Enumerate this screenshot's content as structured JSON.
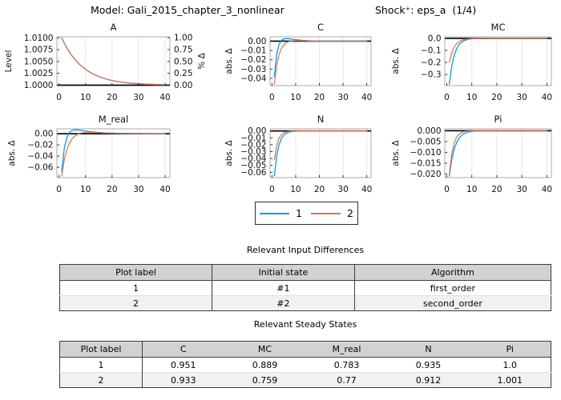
{
  "header": {
    "model_title": "Model: Gali_2015_chapter_3_nonlinear",
    "shock_title": "Shock⁺: eps_a  (1/4)"
  },
  "colors": {
    "series1": "#009AFA",
    "series2": "#E36F47",
    "steady_state_line": "#000000",
    "frame": "#ABABAB",
    "grid": "#E3E3E3",
    "table_header_bg": "#D2D2D2",
    "table_row2_bg": "#F1F1F1"
  },
  "legend": {
    "items": [
      {
        "label": "1",
        "color": "#009AFA"
      },
      {
        "label": "2",
        "color": "#E36F47"
      }
    ]
  },
  "chart_data": [
    {
      "type": "line",
      "title": "A",
      "ylabel": "Level",
      "x_range": [
        1,
        40
      ],
      "xticks": [
        0,
        10,
        20,
        30,
        40
      ],
      "xlim": [
        -0.8,
        41.8
      ],
      "ylim": [
        0.9999,
        1.01022
      ],
      "ytick_labels": [
        "1.0000",
        "1.0025",
        "1.0050",
        "1.0075",
        "1.0100"
      ],
      "steady_state_line": 1.0,
      "grid": "vertical",
      "legend_position": "none",
      "right_axis": {
        "label": "% Δ",
        "tick_labels": [
          "0.00",
          "0.25",
          "0.50",
          "0.75",
          "1.00"
        ],
        "lim": [
          -0.0097,
          1.0195
        ]
      },
      "series": [
        {
          "name": "1",
          "values": [
            1.01,
            1.00885,
            1.00783,
            1.00693,
            1.00613,
            1.00543,
            1.0048,
            1.00425,
            1.00376,
            1.00333,
            1.00295,
            1.00261,
            1.00231,
            1.00204,
            1.00181,
            1.0016,
            1.00142,
            1.00125,
            1.00111,
            1.00098,
            1.00087,
            1.00077,
            1.00068,
            1.0006,
            1.00053,
            1.00047,
            1.00042,
            1.00037,
            1.00033,
            1.00029,
            1.00026,
            1.00023,
            1.0002,
            1.00018,
            1.00016,
            1.00014,
            1.00012,
            1.00011,
            1.0001,
            1.00009
          ]
        },
        {
          "name": "2",
          "values": [
            1.01,
            1.00885,
            1.00783,
            1.00693,
            1.00613,
            1.00543,
            1.0048,
            1.00425,
            1.00376,
            1.00333,
            1.00295,
            1.00261,
            1.00231,
            1.00204,
            1.00181,
            1.0016,
            1.00142,
            1.00125,
            1.00111,
            1.00098,
            1.00087,
            1.00077,
            1.00068,
            1.0006,
            1.00053,
            1.00047,
            1.00042,
            1.00037,
            1.00033,
            1.00029,
            1.00026,
            1.00023,
            1.0002,
            1.00018,
            1.00016,
            1.00014,
            1.00012,
            1.00011,
            1.0001,
            1.00009
          ]
        }
      ]
    },
    {
      "type": "line",
      "title": "C",
      "ylabel": "abs. Δ",
      "x_range": [
        1,
        40
      ],
      "xticks": [
        0,
        10,
        20,
        30,
        40
      ],
      "xlim": [
        -0.8,
        41.8
      ],
      "ylim": [
        -0.0478,
        0.0047
      ],
      "ytick_labels": [
        "0.00",
        "−0.01",
        "−0.02",
        "−0.03",
        "−0.04"
      ],
      "steady_state_line": 0,
      "grid": "vertical",
      "legend_position": "none",
      "series": [
        {
          "name": "1",
          "values": [
            -0.038,
            -0.014,
            -0.0034,
            0.0009,
            0.0025,
            0.0028,
            0.0027,
            0.0023,
            0.0019,
            0.0016,
            0.0013,
            0.0011,
            0.0008,
            0.0007,
            0.0005,
            0.0004,
            0.0003,
            0.0003,
            0.0002,
            0.0002,
            0.0001,
            0.0001,
            0.0001,
            0.0001,
            0.0001,
            0,
            0,
            0,
            0,
            0,
            0,
            0,
            0,
            0,
            0,
            0,
            0,
            0,
            0,
            0
          ]
        },
        {
          "name": "2",
          "values": [
            -0.046,
            -0.026,
            -0.0144,
            -0.0076,
            -0.0038,
            -0.0017,
            -0.0005,
            0.0001,
            0.0004,
            0.0005,
            0.0005,
            0.0005,
            0.0004,
            0.0004,
            0.0003,
            0.0003,
            0.0002,
            0.0002,
            0.0002,
            0.0001,
            0.0001,
            0.0001,
            0.0001,
            0.0001,
            0.0001,
            0,
            0,
            0,
            0,
            0,
            0,
            0,
            0,
            0,
            0,
            0,
            0,
            0,
            0,
            0
          ]
        }
      ]
    },
    {
      "type": "line",
      "title": "MC",
      "ylabel": "abs. Δ",
      "x_range": [
        1,
        40
      ],
      "xticks": [
        0,
        10,
        20,
        30,
        40
      ],
      "xlim": [
        -0.8,
        41.8
      ],
      "ylim": [
        -0.392,
        0.013
      ],
      "ytick_labels": [
        "0.0",
        "−0.1",
        "−0.2",
        "−0.3"
      ],
      "steady_state_line": 0,
      "grid": "vertical",
      "legend_position": "none",
      "series": [
        {
          "name": "1",
          "values": [
            -0.38,
            -0.228,
            -0.137,
            -0.082,
            -0.049,
            -0.03,
            -0.018,
            -0.011,
            -0.0064,
            -0.0038,
            -0.0023,
            -0.0014,
            -0.0008,
            -0.0005,
            -0.0003,
            -0.0002,
            -0.0001,
            -0.0001,
            0,
            0,
            0,
            0,
            0,
            0,
            0,
            0,
            0,
            0,
            0,
            0,
            0,
            0,
            0,
            0,
            0,
            0,
            0,
            0,
            0,
            0
          ]
        },
        {
          "name": "2",
          "values": [
            -0.2,
            -0.12,
            -0.072,
            -0.043,
            -0.026,
            -0.016,
            -0.0093,
            -0.0056,
            -0.0034,
            -0.002,
            -0.0012,
            -0.0007,
            -0.0004,
            -0.0003,
            -0.0002,
            -0.0001,
            0,
            0,
            0,
            0,
            0,
            0,
            0,
            0,
            0,
            0,
            0,
            0,
            0,
            0,
            0,
            0,
            0,
            0,
            0,
            0,
            0,
            0,
            0,
            0
          ]
        }
      ]
    },
    {
      "type": "line",
      "title": "M_real",
      "ylabel": "abs. Δ",
      "x_range": [
        1,
        40
      ],
      "xticks": [
        0,
        10,
        20,
        30,
        40
      ],
      "xlim": [
        -0.8,
        41.8
      ],
      "ylim": [
        -0.0785,
        0.0088
      ],
      "ytick_labels": [
        "0.00",
        "−0.02",
        "−0.04",
        "−0.06"
      ],
      "steady_state_line": 0,
      "grid": "vertical",
      "legend_position": "none",
      "series": [
        {
          "name": "1",
          "values": [
            -0.068,
            -0.0254,
            -0.0058,
            0.0027,
            0.0061,
            0.007,
            0.0069,
            0.0063,
            0.0056,
            0.0048,
            0.0042,
            0.0036,
            0.0031,
            0.0026,
            0.0022,
            0.0019,
            0.0016,
            0.0014,
            0.0012,
            0.001,
            0.0009,
            0.0007,
            0.0006,
            0.0005,
            0.0005,
            0.0004,
            0.0003,
            0.0003,
            0.0002,
            0.0002,
            0.0002,
            0.0001,
            0.0001,
            0.0001,
            0.0001,
            0.0001,
            0,
            0,
            0,
            0
          ]
        },
        {
          "name": "2",
          "values": [
            -0.0755,
            -0.0466,
            -0.0279,
            -0.016,
            -0.0084,
            -0.0037,
            -0.0009,
            0.0008,
            0.0018,
            0.0022,
            0.0024,
            0.0024,
            0.0021,
            0.002,
            0.0018,
            0.0016,
            0.0014,
            0.0012,
            0.0011,
            0.0009,
            0.0008,
            0.0007,
            0.0006,
            0.0005,
            0.0005,
            0.0004,
            0.0003,
            0.0003,
            0.0002,
            0.0002,
            0.0002,
            0.0001,
            0.0001,
            0.0001,
            0,
            0,
            0,
            0,
            0,
            0
          ]
        }
      ]
    },
    {
      "type": "line",
      "title": "N",
      "ylabel": "abs. Δ",
      "x_range": [
        1,
        40
      ],
      "xticks": [
        0,
        10,
        20,
        30,
        40
      ],
      "xlim": [
        -0.8,
        41.8
      ],
      "ylim": [
        -0.0678,
        0.0031
      ],
      "ytick_labels": [
        "0.00",
        "−0.01",
        "−0.02",
        "−0.03",
        "−0.04",
        "−0.05",
        "−0.06"
      ],
      "steady_state_line": 0,
      "grid": "vertical",
      "legend_position": "none",
      "series": [
        {
          "name": "1",
          "values": [
            -0.065,
            -0.0358,
            -0.0197,
            -0.0108,
            -0.0059,
            -0.0033,
            -0.0018,
            -0.001,
            -0.0005,
            -0.0003,
            -0.0002,
            -0.0001,
            -0.0001,
            0,
            0,
            0,
            0,
            0,
            0,
            0,
            0,
            0,
            0,
            0,
            0,
            0,
            0,
            0,
            0,
            0,
            0,
            0,
            0,
            0,
            0,
            0,
            0,
            0,
            0,
            0
          ]
        },
        {
          "name": "2",
          "values": [
            -0.042,
            -0.021,
            -0.0105,
            -0.0053,
            -0.0026,
            -0.0013,
            -0.0007,
            -0.0003,
            -0.0002,
            -0.0001,
            0,
            0,
            0,
            0,
            0,
            0,
            0,
            0,
            0,
            0,
            0,
            0,
            0,
            0,
            0,
            0,
            0,
            0,
            0,
            0,
            0,
            0,
            0,
            0,
            0,
            0,
            0,
            0,
            0,
            0
          ]
        }
      ]
    },
    {
      "type": "line",
      "title": "Pi",
      "ylabel": "abs. Δ",
      "x_range": [
        1,
        40
      ],
      "xticks": [
        0,
        10,
        20,
        30,
        40
      ],
      "xlim": [
        -0.8,
        41.8
      ],
      "ylim": [
        -0.0217,
        0.0009
      ],
      "ytick_labels": [
        "0.000",
        "−0.005",
        "−0.010",
        "−0.015",
        "−0.020"
      ],
      "steady_state_line": 0,
      "grid": "vertical",
      "legend_position": "none",
      "series": [
        {
          "name": "1",
          "values": [
            -0.021,
            -0.0132,
            -0.0083,
            -0.0053,
            -0.0033,
            -0.0021,
            -0.0013,
            -0.0008,
            -0.0005,
            -0.0003,
            -0.0002,
            -0.0001,
            -0.0001,
            0,
            0,
            0,
            0,
            0,
            0,
            0,
            0,
            0,
            0,
            0,
            0,
            0,
            0,
            0,
            0,
            0,
            0,
            0,
            0,
            0,
            0,
            0,
            0,
            0,
            0,
            0
          ]
        },
        {
          "name": "2",
          "values": [
            -0.0202,
            -0.0105,
            -0.0055,
            -0.0028,
            -0.0015,
            -0.0008,
            -0.0004,
            -0.0002,
            -0.0001,
            -0.0001,
            0,
            0,
            0,
            0,
            0,
            0,
            0,
            0,
            0,
            0,
            0,
            0,
            0,
            0,
            0,
            0,
            0,
            0,
            0,
            0,
            0,
            0,
            0,
            0,
            0,
            0,
            0,
            0,
            0,
            0
          ]
        }
      ]
    }
  ],
  "tables": [
    {
      "caption": "Relevant Input Differences",
      "columns": [
        "Plot label",
        "Initial state",
        "Algorithm"
      ],
      "rows": [
        [
          "1",
          "#1",
          "first_order"
        ],
        [
          "2",
          "#2",
          "second_order"
        ]
      ]
    },
    {
      "caption": "Relevant Steady States",
      "columns": [
        "Plot label",
        "C",
        "MC",
        "M_real",
        "N",
        "Pi"
      ],
      "rows": [
        [
          "1",
          "0.951",
          "0.889",
          "0.783",
          "0.935",
          "1.0"
        ],
        [
          "2",
          "0.933",
          "0.759",
          "0.77",
          "0.912",
          "1.001"
        ]
      ]
    }
  ]
}
